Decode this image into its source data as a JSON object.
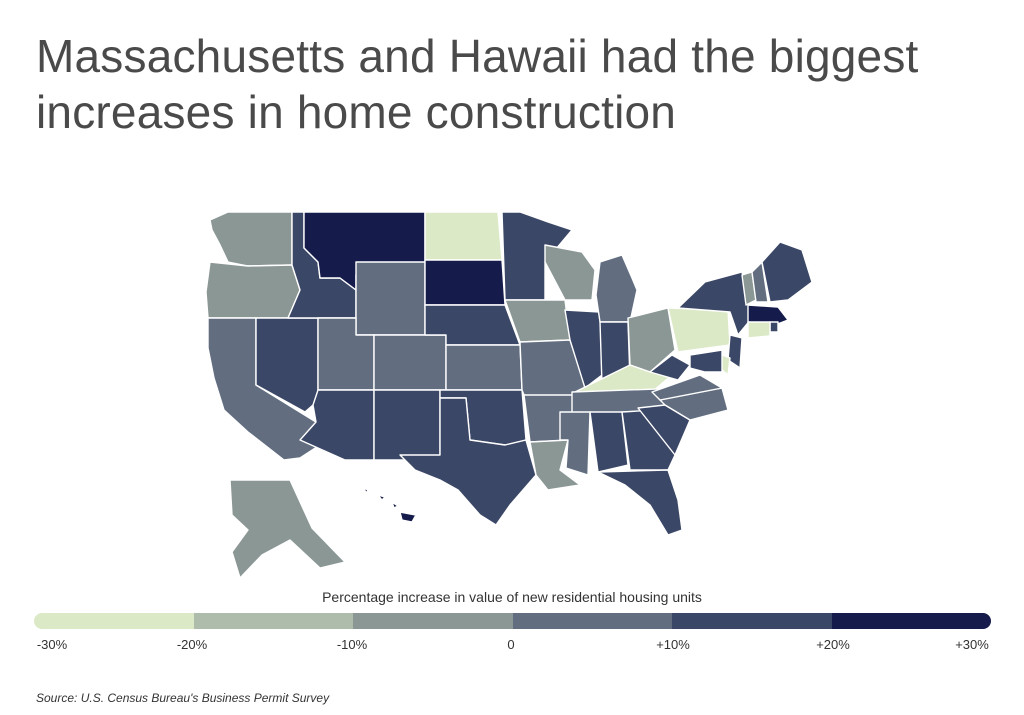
{
  "title": "Massachusetts and Hawaii had the biggest increases in home construction",
  "legend": {
    "title": "Percentage increase in value of new residential housing units",
    "ticks": [
      "-30%",
      "-20%",
      "-10%",
      "0",
      "+10%",
      "+20%",
      "+30%"
    ],
    "colors": [
      "#dbe9c6",
      "#aebcab",
      "#8b9795",
      "#626e80",
      "#3b4766",
      "#151c4b"
    ]
  },
  "source": "Source:  U.S. Census Bureau's Business Permit Survey",
  "map_data": {
    "variable": "Percentage increase in value of new residential housing units",
    "scale": "-30% to +30% in 10-point bins",
    "states": [
      {
        "name": "Washington",
        "bin": 2
      },
      {
        "name": "Oregon",
        "bin": 2
      },
      {
        "name": "California",
        "bin": 3
      },
      {
        "name": "Nevada",
        "bin": 4
      },
      {
        "name": "Idaho",
        "bin": 4
      },
      {
        "name": "Montana",
        "bin": 5
      },
      {
        "name": "Wyoming",
        "bin": 3
      },
      {
        "name": "Utah",
        "bin": 3
      },
      {
        "name": "Colorado",
        "bin": 3
      },
      {
        "name": "Arizona",
        "bin": 4
      },
      {
        "name": "New Mexico",
        "bin": 4
      },
      {
        "name": "North Dakota",
        "bin": 0
      },
      {
        "name": "South Dakota",
        "bin": 5
      },
      {
        "name": "Nebraska",
        "bin": 4
      },
      {
        "name": "Kansas",
        "bin": 3
      },
      {
        "name": "Oklahoma",
        "bin": 4
      },
      {
        "name": "Texas",
        "bin": 4
      },
      {
        "name": "Minnesota",
        "bin": 4
      },
      {
        "name": "Iowa",
        "bin": 2
      },
      {
        "name": "Missouri",
        "bin": 3
      },
      {
        "name": "Arkansas",
        "bin": 3
      },
      {
        "name": "Louisiana",
        "bin": 2
      },
      {
        "name": "Wisconsin",
        "bin": 2
      },
      {
        "name": "Illinois",
        "bin": 4
      },
      {
        "name": "Michigan",
        "bin": 3
      },
      {
        "name": "Indiana",
        "bin": 4
      },
      {
        "name": "Ohio",
        "bin": 2
      },
      {
        "name": "Kentucky",
        "bin": 0
      },
      {
        "name": "Tennessee",
        "bin": 3
      },
      {
        "name": "Mississippi",
        "bin": 3
      },
      {
        "name": "Alabama",
        "bin": 4
      },
      {
        "name": "Georgia",
        "bin": 4
      },
      {
        "name": "Florida",
        "bin": 4
      },
      {
        "name": "South Carolina",
        "bin": 4
      },
      {
        "name": "North Carolina",
        "bin": 3
      },
      {
        "name": "Virginia",
        "bin": 3
      },
      {
        "name": "West Virginia",
        "bin": 4
      },
      {
        "name": "Pennsylvania",
        "bin": 0
      },
      {
        "name": "New York",
        "bin": 4
      },
      {
        "name": "Vermont",
        "bin": 2
      },
      {
        "name": "New Hampshire",
        "bin": 3
      },
      {
        "name": "Maine",
        "bin": 4
      },
      {
        "name": "Massachusetts",
        "bin": 5
      },
      {
        "name": "Rhode Island",
        "bin": 4
      },
      {
        "name": "Connecticut",
        "bin": 0
      },
      {
        "name": "New Jersey",
        "bin": 4
      },
      {
        "name": "Delaware",
        "bin": 0
      },
      {
        "name": "Maryland",
        "bin": 4
      },
      {
        "name": "Alaska",
        "bin": 2
      },
      {
        "name": "Hawaii",
        "bin": 5
      }
    ]
  }
}
